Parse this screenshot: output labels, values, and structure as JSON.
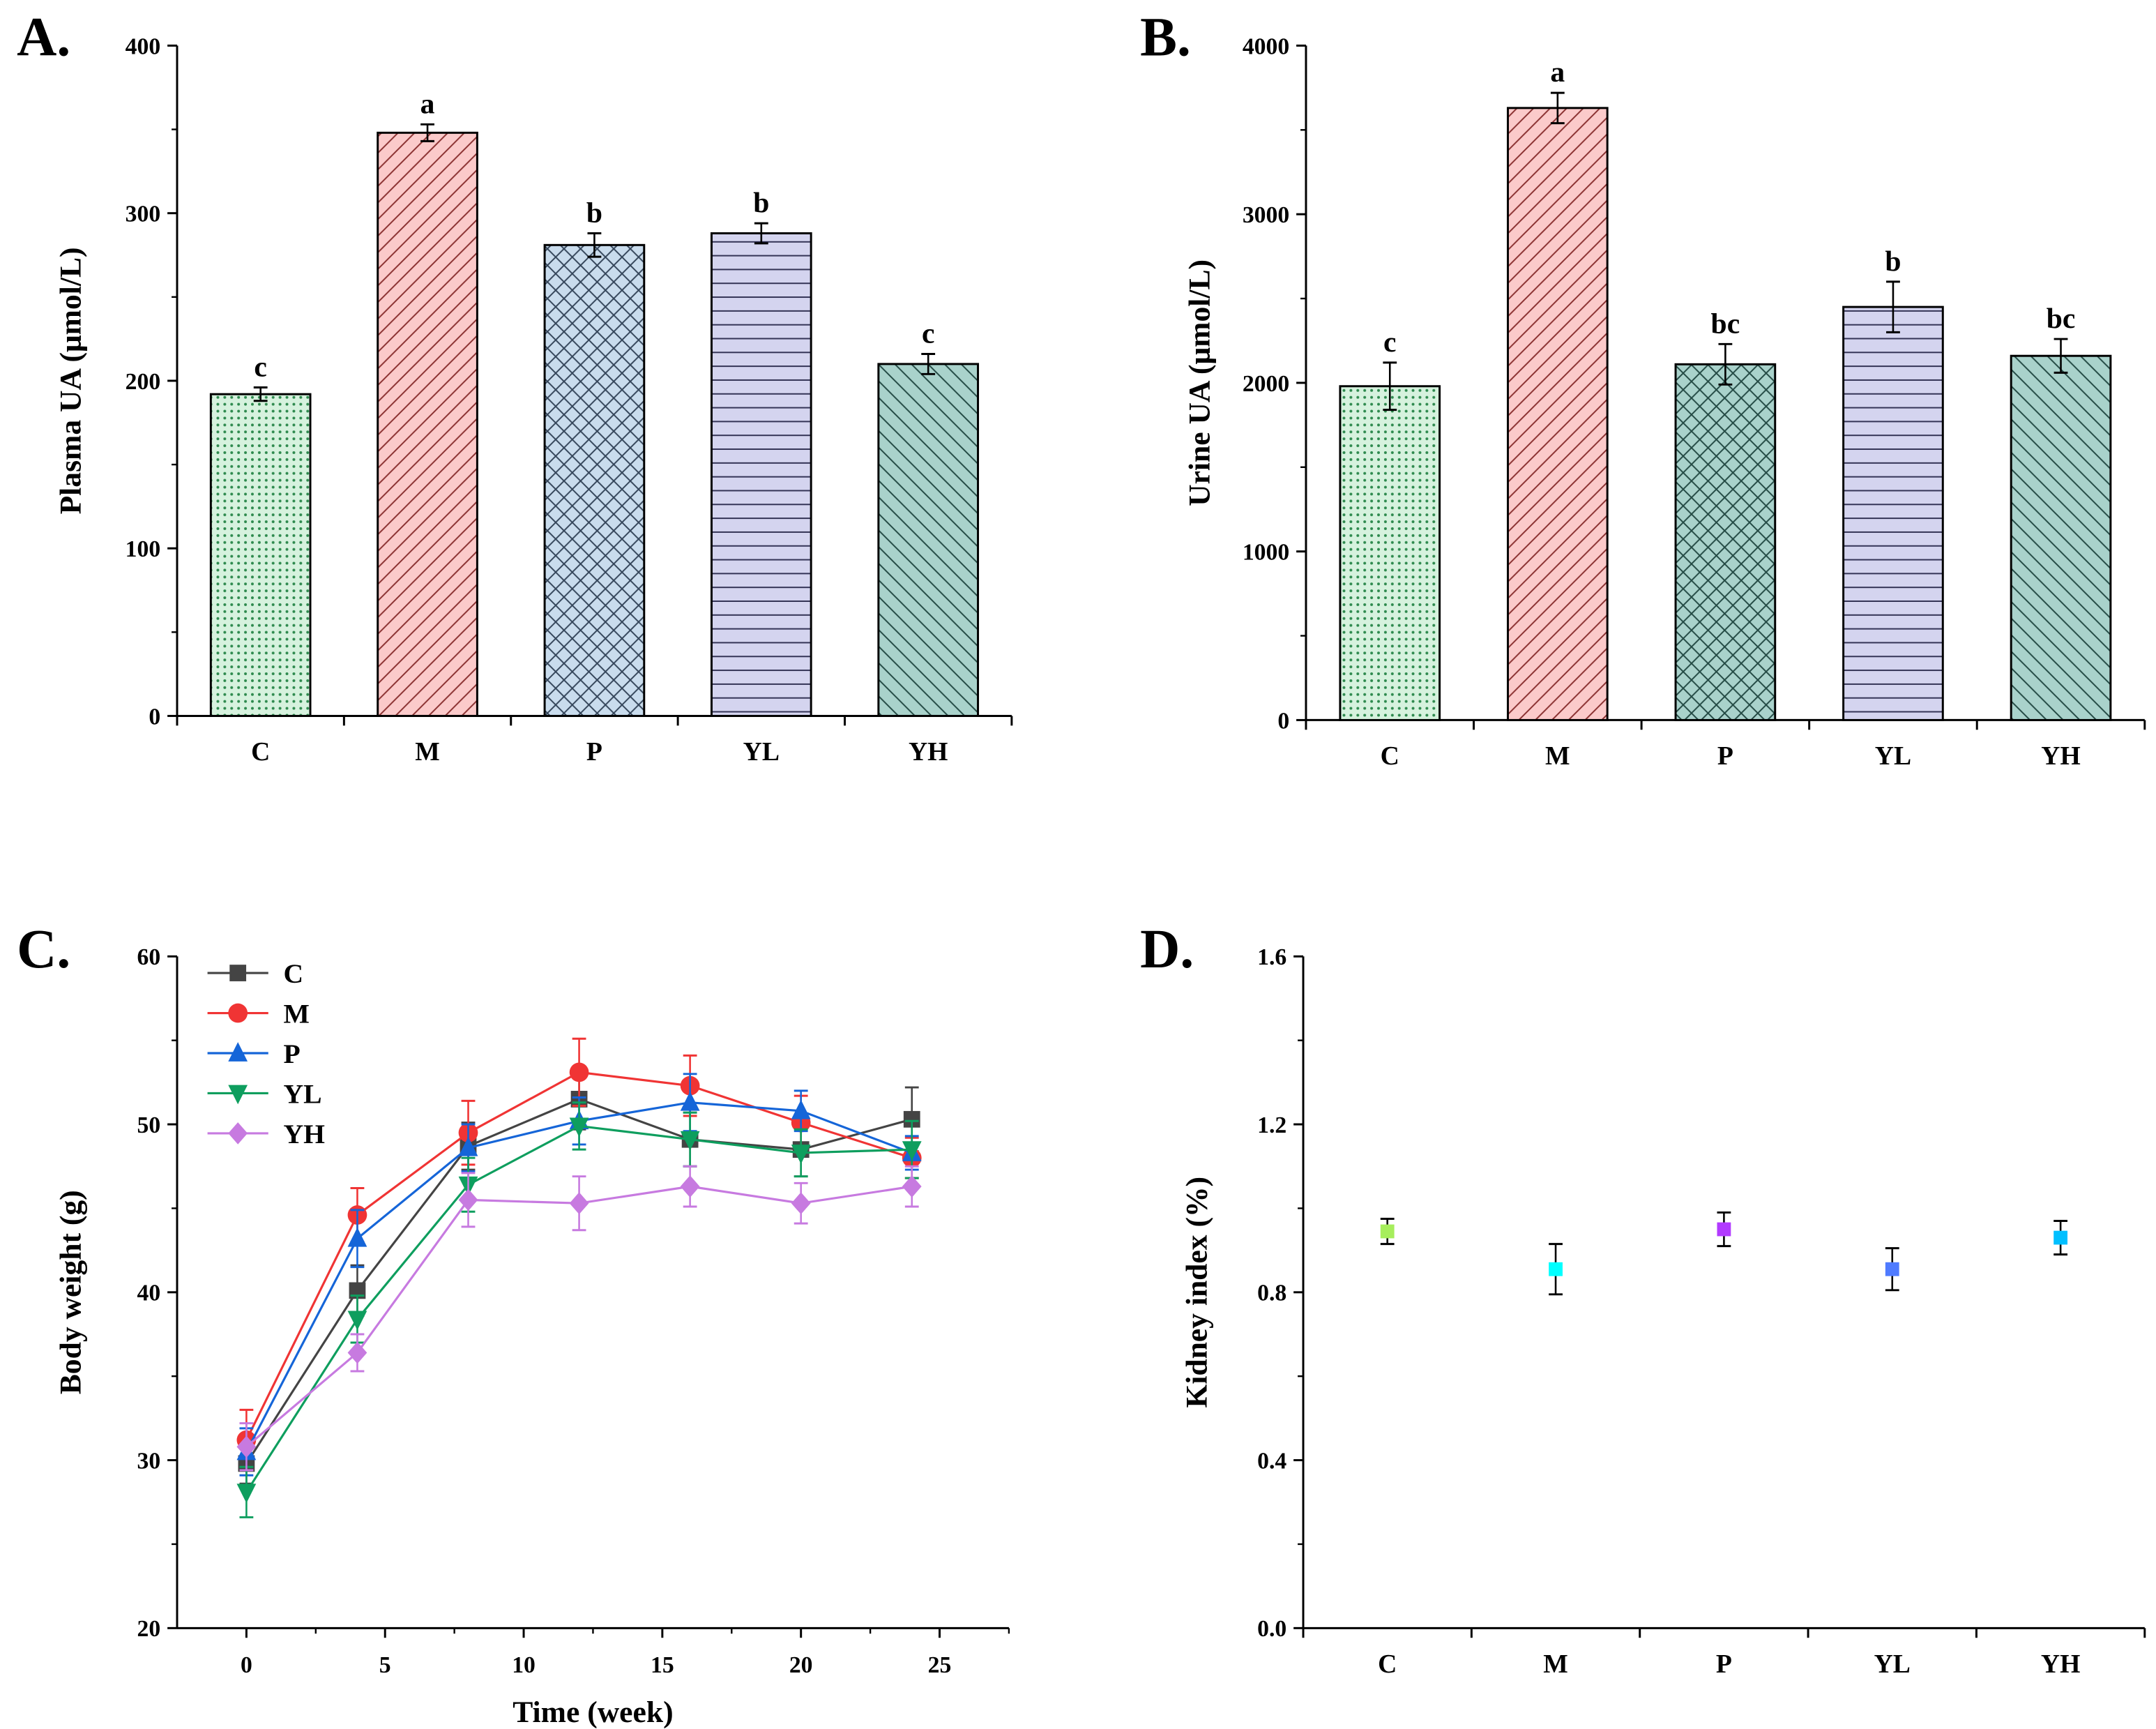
{
  "chart_data": [
    {
      "panel": "A.",
      "type": "bar",
      "ylabel": "Plasma UA (μmol/L)",
      "xlabel": "",
      "ylim": [
        0,
        400
      ],
      "yticks": [
        0,
        100,
        200,
        300,
        400
      ],
      "categories": [
        "C",
        "M",
        "P",
        "YL",
        "YH"
      ],
      "values": [
        192,
        348,
        281,
        288,
        210
      ],
      "errors": [
        4,
        5,
        7,
        6,
        6
      ],
      "letters": [
        "c",
        "a",
        "b",
        "b",
        "c"
      ]
    },
    {
      "panel": "B.",
      "type": "bar",
      "ylabel": "Urine UA (μmol/L)",
      "xlabel": "",
      "ylim": [
        0,
        4000
      ],
      "yticks": [
        0,
        1000,
        2000,
        3000,
        4000
      ],
      "categories": [
        "C",
        "M",
        "P",
        "YL",
        "YH"
      ],
      "values": [
        1980,
        3630,
        2110,
        2450,
        2160
      ],
      "errors": [
        140,
        90,
        120,
        150,
        100
      ],
      "letters": [
        "c",
        "a",
        "bc",
        "b",
        "bc"
      ]
    },
    {
      "panel": "C.",
      "type": "line",
      "ylabel": "Body weight (g)",
      "xlabel": "Time (week)",
      "xlim": [
        -2.5,
        27.5
      ],
      "ylim": [
        20,
        60
      ],
      "xticks": [
        0,
        5,
        10,
        15,
        20,
        25
      ],
      "yticks": [
        20,
        30,
        40,
        50,
        60
      ],
      "legend": "top-left",
      "x": [
        0,
        4,
        8,
        12,
        16,
        20,
        24
      ],
      "series": [
        {
          "name": "C",
          "color": "#444444",
          "marker": "square",
          "values": [
            29.8,
            40.1,
            48.7,
            51.5,
            49.1,
            48.5,
            50.3
          ],
          "errors": [
            1.2,
            1.5,
            1.4,
            1.8,
            1.6,
            1.6,
            1.9
          ]
        },
        {
          "name": "M",
          "color": "#f03434",
          "marker": "circle",
          "values": [
            31.2,
            44.6,
            49.5,
            53.1,
            52.3,
            50.1,
            48.0
          ],
          "errors": [
            1.8,
            1.6,
            1.9,
            2.0,
            1.8,
            1.6,
            1.2
          ]
        },
        {
          "name": "P",
          "color": "#1565d8",
          "marker": "triangle-up",
          "values": [
            30.5,
            43.2,
            48.6,
            50.2,
            51.3,
            50.8,
            48.3
          ],
          "errors": [
            1.4,
            1.7,
            1.4,
            1.4,
            1.7,
            1.2,
            1.0
          ]
        },
        {
          "name": "YL",
          "color": "#0e9e5e",
          "marker": "triangle-down",
          "values": [
            28.1,
            38.4,
            46.4,
            49.9,
            49.1,
            48.3,
            48.5
          ],
          "errors": [
            1.5,
            1.4,
            1.6,
            1.4,
            1.6,
            1.4,
            1.7
          ]
        },
        {
          "name": "YH",
          "color": "#c77ae0",
          "marker": "diamond",
          "values": [
            30.8,
            36.4,
            45.5,
            45.3,
            46.3,
            45.3,
            46.3
          ],
          "errors": [
            1.4,
            1.1,
            1.6,
            1.6,
            1.2,
            1.2,
            1.2
          ]
        }
      ]
    },
    {
      "panel": "D.",
      "type": "scatter",
      "ylabel": "Kidney index (%)",
      "xlabel": "",
      "ylim": [
        0,
        1.6
      ],
      "yticks": [
        "0.0",
        "0.4",
        "0.8",
        "1.2",
        "1.6"
      ],
      "categories": [
        "C",
        "M",
        "P",
        "YL",
        "YH"
      ],
      "values": [
        0.945,
        0.855,
        0.95,
        0.855,
        0.93
      ],
      "errors": [
        0.03,
        0.06,
        0.04,
        0.05,
        0.04
      ],
      "colors": [
        "#a6ee5c",
        "#00ffff",
        "#b23aff",
        "#4f7bff",
        "#00bfff"
      ]
    }
  ]
}
